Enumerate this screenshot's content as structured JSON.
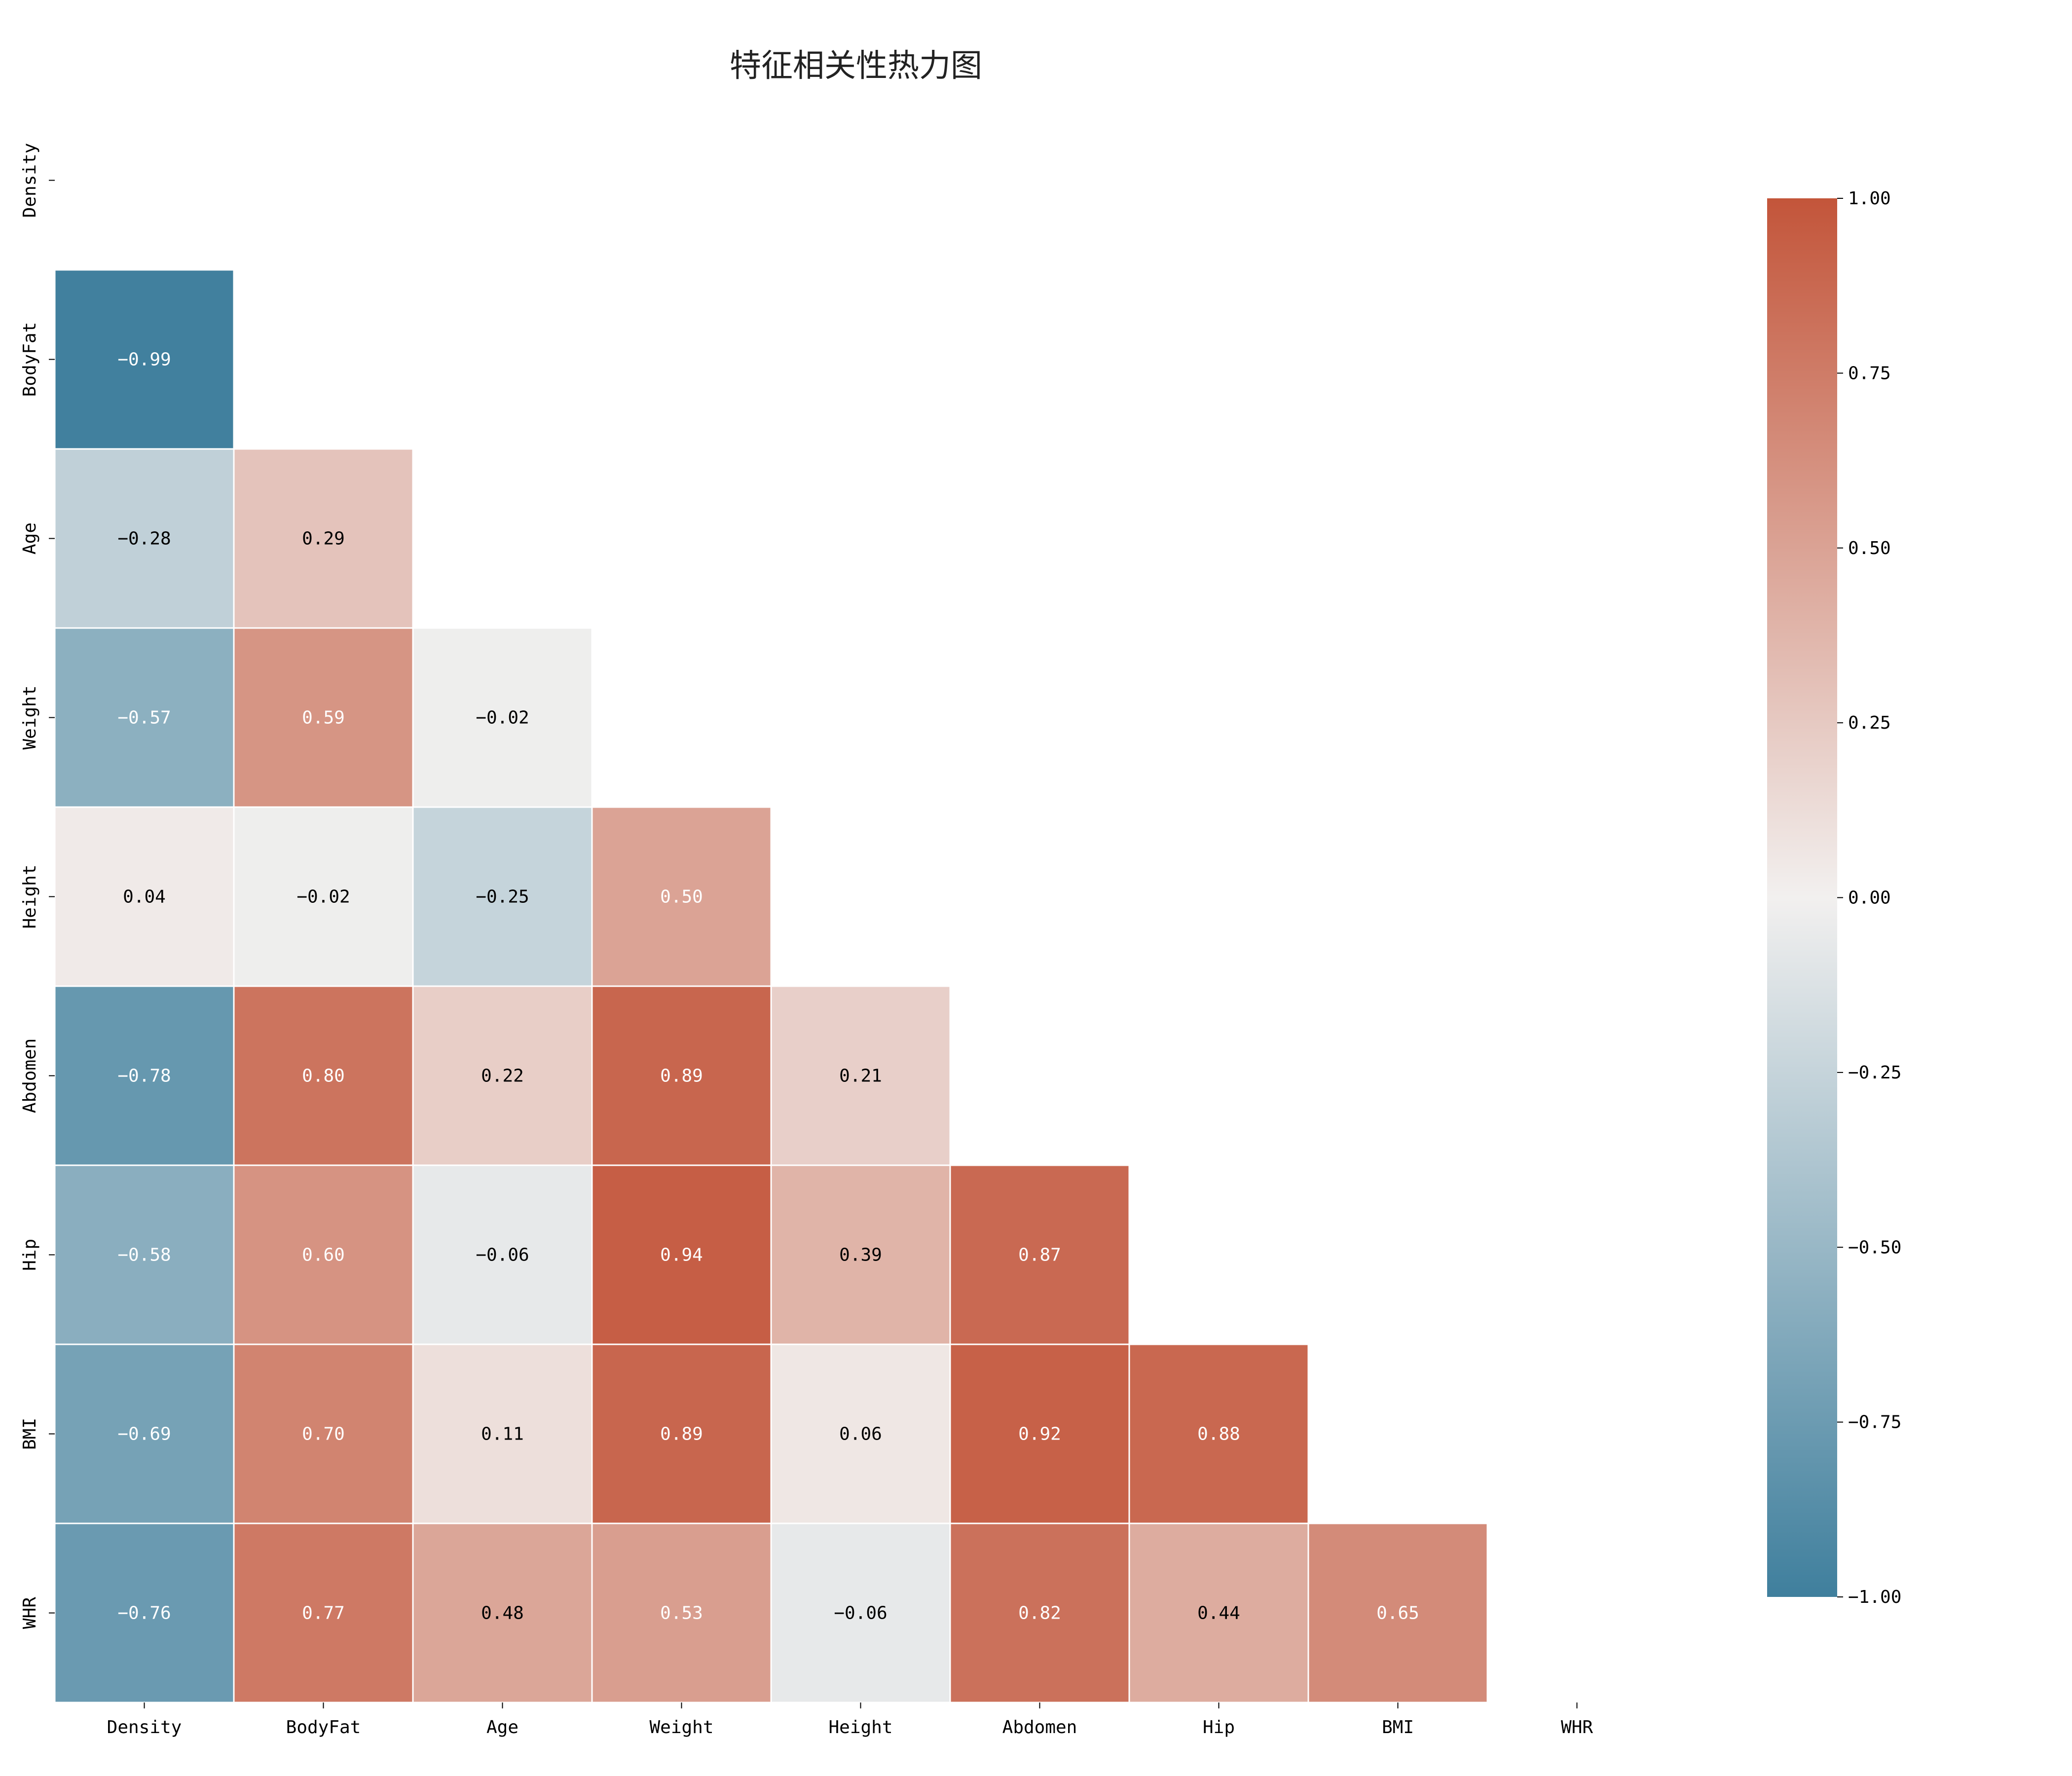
{
  "chart_data": {
    "type": "heatmap",
    "title": "特征相关性热力图",
    "mask": "upper-triangle-and-diagonal",
    "rows": [
      "Density",
      "BodyFat",
      "Age",
      "Weight",
      "Height",
      "Abdomen",
      "Hip",
      "BMI",
      "WHR"
    ],
    "columns": [
      "Density",
      "BodyFat",
      "Age",
      "Weight",
      "Height",
      "Abdomen",
      "Hip",
      "BMI",
      "WHR"
    ],
    "values": [
      [
        null,
        null,
        null,
        null,
        null,
        null,
        null,
        null,
        null
      ],
      [
        -0.99,
        null,
        null,
        null,
        null,
        null,
        null,
        null,
        null
      ],
      [
        -0.28,
        0.29,
        null,
        null,
        null,
        null,
        null,
        null,
        null
      ],
      [
        -0.57,
        0.59,
        -0.02,
        null,
        null,
        null,
        null,
        null,
        null
      ],
      [
        0.04,
        -0.02,
        -0.25,
        0.5,
        null,
        null,
        null,
        null,
        null
      ],
      [
        -0.78,
        0.8,
        0.22,
        0.89,
        0.21,
        null,
        null,
        null,
        null
      ],
      [
        -0.58,
        0.6,
        -0.06,
        0.94,
        0.39,
        0.87,
        null,
        null,
        null
      ],
      [
        -0.69,
        0.7,
        0.11,
        0.89,
        0.06,
        0.92,
        0.88,
        null,
        null
      ],
      [
        -0.76,
        0.77,
        0.48,
        0.53,
        -0.06,
        0.82,
        0.44,
        0.65,
        null
      ]
    ],
    "value_labels": [
      [
        null,
        null,
        null,
        null,
        null,
        null,
        null,
        null,
        null
      ],
      [
        "−0.99",
        null,
        null,
        null,
        null,
        null,
        null,
        null,
        null
      ],
      [
        "−0.28",
        "0.29",
        null,
        null,
        null,
        null,
        null,
        null,
        null
      ],
      [
        "−0.57",
        "0.59",
        "−0.02",
        null,
        null,
        null,
        null,
        null,
        null
      ],
      [
        "0.04",
        "−0.02",
        "−0.25",
        "0.50",
        null,
        null,
        null,
        null,
        null
      ],
      [
        "−0.78",
        "0.80",
        "0.22",
        "0.89",
        "0.21",
        null,
        null,
        null,
        null
      ],
      [
        "−0.58",
        "0.60",
        "−0.06",
        "0.94",
        "0.39",
        "0.87",
        null,
        null,
        null
      ],
      [
        "−0.69",
        "0.70",
        "0.11",
        "0.89",
        "0.06",
        "0.92",
        "0.88",
        null,
        null
      ],
      [
        "−0.76",
        "0.77",
        "0.48",
        "0.53",
        "−0.06",
        "0.82",
        "0.44",
        "0.65",
        null
      ]
    ],
    "colorbar": {
      "vmin": -1.0,
      "vmax": 1.0,
      "ticks": [
        1.0,
        0.75,
        0.5,
        0.25,
        0.0,
        -0.25,
        -0.5,
        -0.75,
        -1.0
      ],
      "tick_labels": [
        "1.00",
        "0.75",
        "0.50",
        "0.25",
        "0.00",
        "−0.25",
        "−0.50",
        "−0.75",
        "−1.00"
      ],
      "placement": "right"
    },
    "colors": {
      "negative": "#3f7f9d",
      "neutral": "#f2f0ef",
      "positive": "#c3553a",
      "cell_border": "#ffffff"
    }
  }
}
